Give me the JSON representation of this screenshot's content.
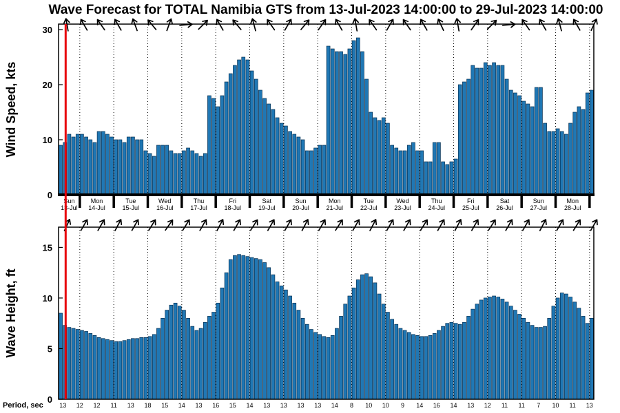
{
  "title": "Wave Forecast for TOTAL Namibia GTS from 13-Jul-2023 14:00:00 to 29-Jul-2023 14:00:00",
  "chart_data": [
    {
      "type": "bar",
      "name": "wind-speed",
      "ylabel": "Wind Speed, kts",
      "yticks": [
        0,
        10,
        20,
        30
      ],
      "ylim": [
        0,
        31
      ],
      "step_hours": 3,
      "values": [
        9,
        9.5,
        11,
        10.5,
        11,
        11,
        10.5,
        10,
        9.5,
        11.5,
        11.5,
        11,
        10.5,
        10,
        10,
        9.5,
        10.5,
        10.5,
        10,
        10,
        8,
        7.5,
        7,
        9,
        9,
        9,
        8,
        7.5,
        7.5,
        8,
        8.5,
        8,
        7.5,
        7,
        7.5,
        18,
        17.5,
        16,
        18,
        20.5,
        22,
        23.5,
        24.5,
        25,
        24.5,
        22.5,
        21,
        19,
        17.5,
        16.5,
        15.5,
        14,
        13,
        12.5,
        11.5,
        11,
        10.5,
        10,
        8,
        8,
        8.5,
        9,
        9,
        27,
        26.5,
        26,
        26,
        25.5,
        26.5,
        28,
        28.5,
        26,
        21,
        15,
        14,
        13.5,
        14,
        13,
        9,
        8.5,
        8,
        8,
        9,
        9.5,
        8,
        8,
        6,
        6,
        9.5,
        9.5,
        6,
        5.5,
        6,
        6.5,
        20,
        20.5,
        21,
        23.5,
        23,
        23,
        24,
        23.5,
        24,
        23.5,
        23.5,
        21,
        19,
        18.5,
        18,
        17,
        16.5,
        16,
        19.5,
        19.5,
        13,
        11.5,
        11.5,
        12,
        11.5,
        11,
        13,
        15,
        16,
        15.5,
        18.5,
        19
      ],
      "arrow_angles_deg": [
        -10,
        -30,
        -35,
        -30,
        -20,
        -40,
        20,
        85,
        45,
        -30,
        -40,
        -15,
        -35,
        30,
        40,
        35,
        -30,
        -10,
        -35,
        30,
        -35,
        -30,
        -25,
        -10,
        35,
        45,
        85,
        -35,
        -30,
        -15,
        -30,
        25
      ]
    },
    {
      "type": "bar",
      "name": "wave-height",
      "ylabel": "Wave Height, ft",
      "yticks": [
        0,
        5,
        10,
        15
      ],
      "ylim": [
        0,
        17
      ],
      "step_hours": 3,
      "values": [
        8.5,
        7.3,
        7.1,
        7,
        6.9,
        6.8,
        6.7,
        6.5,
        6.3,
        6.1,
        6,
        5.9,
        5.8,
        5.7,
        5.7,
        5.8,
        5.9,
        6,
        6,
        6.1,
        6.1,
        6.2,
        6.4,
        7,
        8,
        8.8,
        9.3,
        9.5,
        9.2,
        8.8,
        8,
        7.2,
        6.8,
        7,
        7.6,
        8.2,
        8.6,
        9.5,
        11,
        12.5,
        13.8,
        14.2,
        14.3,
        14.2,
        14.1,
        14,
        13.9,
        13.8,
        13.5,
        13,
        12.3,
        11.6,
        11.2,
        10.8,
        10.2,
        9.5,
        8.8,
        8,
        7.4,
        6.9,
        6.6,
        6.4,
        6.2,
        6.1,
        6.3,
        7,
        8.2,
        9.4,
        10.2,
        11,
        11.8,
        12.3,
        12.4,
        12.1,
        11.5,
        10.4,
        9.4,
        8.6,
        7.9,
        7.4,
        7,
        6.8,
        6.6,
        6.4,
        6.3,
        6.2,
        6.2,
        6.3,
        6.5,
        6.8,
        7.2,
        7.5,
        7.6,
        7.5,
        7.4,
        7.6,
        8.2,
        8.9,
        9.4,
        9.8,
        10,
        10.1,
        10.2,
        10.1,
        9.9,
        9.6,
        9.2,
        8.8,
        8.4,
        8,
        7.6,
        7.3,
        7.1,
        7.1,
        7.2,
        8,
        9.2,
        10,
        10.5,
        10.4,
        10.1,
        9.6,
        9,
        8.2,
        7.5,
        8
      ],
      "arrow_angles_deg": [
        25,
        30,
        30,
        28,
        30,
        32,
        35,
        32,
        30,
        28,
        30,
        33,
        30,
        30,
        28,
        30,
        33,
        30,
        28,
        30,
        30,
        32,
        30,
        28,
        30,
        33,
        30,
        30,
        28,
        30,
        32,
        30
      ]
    }
  ],
  "x_axis": {
    "day_labels": [
      {
        "weekday": "Sun",
        "date": "13-Jul"
      },
      {
        "weekday": "Mon",
        "date": "14-Jul"
      },
      {
        "weekday": "Tue",
        "date": "15-Jul"
      },
      {
        "weekday": "Wed",
        "date": "16-Jul"
      },
      {
        "weekday": "Thu",
        "date": "17-Jul"
      },
      {
        "weekday": "Fri",
        "date": "18-Jul"
      },
      {
        "weekday": "Sat",
        "date": "19-Jul"
      },
      {
        "weekday": "Sun",
        "date": "20-Jul"
      },
      {
        "weekday": "Mon",
        "date": "21-Jul"
      },
      {
        "weekday": "Tue",
        "date": "22-Jul"
      },
      {
        "weekday": "Wed",
        "date": "23-Jul"
      },
      {
        "weekday": "Thu",
        "date": "24-Jul"
      },
      {
        "weekday": "Fri",
        "date": "25-Jul"
      },
      {
        "weekday": "Sat",
        "date": "26-Jul"
      },
      {
        "weekday": "Sun",
        "date": "27-Jul"
      },
      {
        "weekday": "Mon",
        "date": "28-Jul"
      }
    ],
    "current_time_marker": "13-Jul-2023 14:00:00"
  },
  "period_row": {
    "label": "Period, sec",
    "values": [
      13,
      12,
      12,
      11,
      13,
      18,
      15,
      14,
      13,
      16,
      15,
      14,
      13,
      13,
      13,
      13,
      14,
      8,
      10,
      10,
      9,
      14,
      16,
      14,
      13,
      12,
      11,
      11,
      7,
      10,
      11,
      13
    ]
  },
  "colors": {
    "bar_fill": "#1f77b4",
    "bar_edge": "#072f50",
    "current_time_line": "#e8000b",
    "grid": "#000000"
  }
}
